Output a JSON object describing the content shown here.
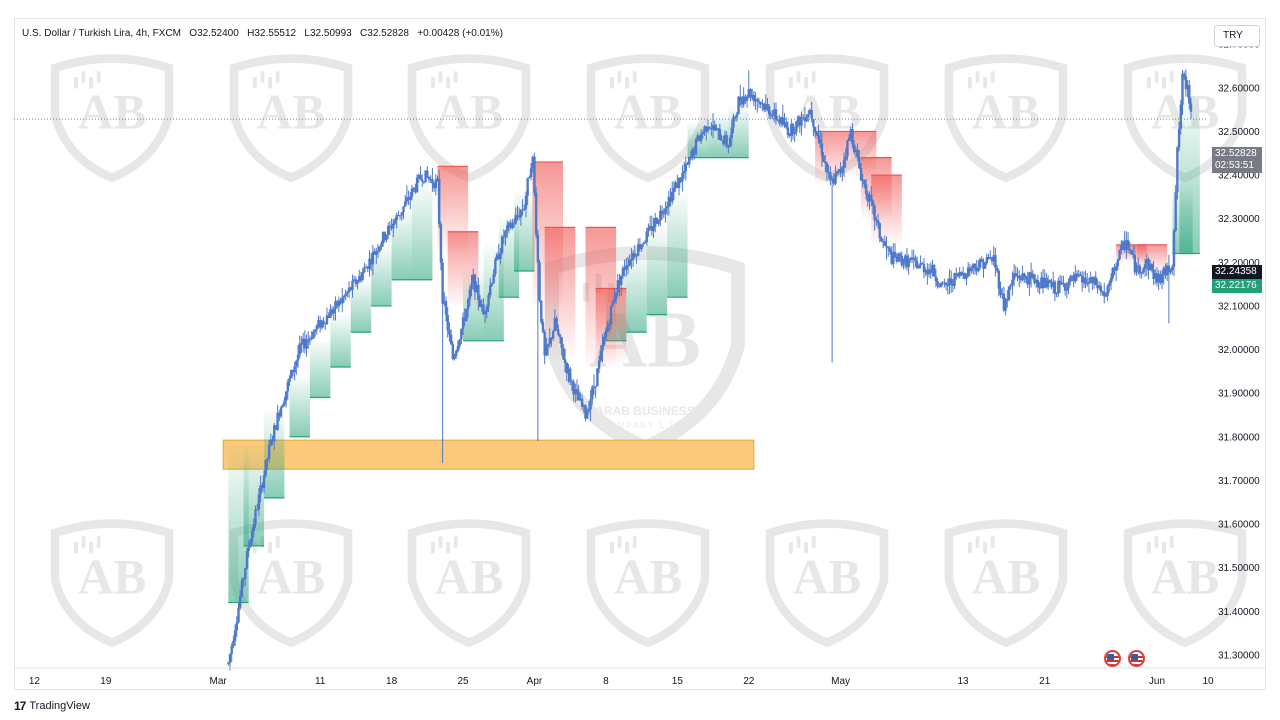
{
  "legend": {
    "symbol": "U.S. Dollar / Turkish Lira, 4h, FXCM",
    "open_label": "O",
    "open": "32.52400",
    "high_label": "H",
    "high": "32.55512",
    "low_label": "L",
    "low": "32.50993",
    "close_label": "C",
    "close": "32.52828",
    "change": "+0.00428 (+0.01%)"
  },
  "currency_button": "TRY",
  "footer": {
    "logo_mark": "17",
    "brand": "TradingView"
  },
  "price_tags": {
    "last": "32.52828",
    "countdown": "02:53:51",
    "level_black": "32.24358",
    "level_green": "32.22176"
  },
  "colors": {
    "candle": "#4e78c8",
    "zone_fill": "#fcc97a",
    "zone_border": "#e2a53c",
    "bull_trail": "#25a27a",
    "bear_trail": "#ef5350",
    "price_tag_last": "#787b86",
    "price_tag_black": "#131722",
    "price_tag_green": "#22a07a"
  },
  "watermark": {
    "text": "ARAB BUSINESS",
    "subtext": "COMPANY L.L.C"
  },
  "chart_data": {
    "type": "candlestick",
    "title": "U.S. Dollar / Turkish Lira, 4h, FXCM",
    "y_axis": {
      "ylim": [
        31.27,
        32.76
      ],
      "ticks": [
        "32.70000",
        "32.60000",
        "32.50000",
        "32.40000",
        "32.30000",
        "32.20000",
        "32.10000",
        "32.00000",
        "31.90000",
        "31.80000",
        "31.70000",
        "31.60000",
        "31.50000",
        "31.40000",
        "31.30000"
      ],
      "tick_values": [
        32.7,
        32.6,
        32.5,
        32.4,
        32.3,
        32.2,
        32.1,
        32.0,
        31.9,
        31.8,
        31.7,
        31.6,
        31.5,
        31.4,
        31.3
      ]
    },
    "x_axis": {
      "xlim_day": [
        0,
        117
      ],
      "ticks": [
        {
          "label": "12",
          "day": 2
        },
        {
          "label": "19",
          "day": 9
        },
        {
          "label": "Mar",
          "day": 20
        },
        {
          "label": "11",
          "day": 30
        },
        {
          "label": "18",
          "day": 37
        },
        {
          "label": "25",
          "day": 44
        },
        {
          "label": "Apr",
          "day": 51
        },
        {
          "label": "8",
          "day": 58
        },
        {
          "label": "15",
          "day": 65
        },
        {
          "label": "22",
          "day": 72
        },
        {
          "label": "May",
          "day": 81
        },
        {
          "label": "13",
          "day": 93
        },
        {
          "label": "21",
          "day": 101
        },
        {
          "label": "Jun",
          "day": 112
        },
        {
          "label": "10",
          "day": 119
        }
      ]
    },
    "price_path": [
      [
        21.0,
        31.28
      ],
      [
        22.0,
        31.41
      ],
      [
        23.0,
        31.55
      ],
      [
        24.0,
        31.66
      ],
      [
        25.0,
        31.77
      ],
      [
        26.0,
        31.86
      ],
      [
        27.0,
        31.93
      ],
      [
        28.0,
        32.0
      ],
      [
        30.0,
        32.06
      ],
      [
        32.0,
        32.11
      ],
      [
        34.0,
        32.17
      ],
      [
        36.0,
        32.25
      ],
      [
        38.0,
        32.32
      ],
      [
        40.0,
        32.4
      ],
      [
        41.5,
        32.38
      ],
      [
        42.0,
        32.12
      ],
      [
        43.0,
        31.98
      ],
      [
        44.0,
        32.06
      ],
      [
        45.0,
        32.16
      ],
      [
        46.0,
        32.08
      ],
      [
        47.0,
        32.18
      ],
      [
        48.0,
        32.26
      ],
      [
        50.0,
        32.33
      ],
      [
        50.8,
        32.45
      ],
      [
        51.5,
        32.12
      ],
      [
        52.0,
        31.98
      ],
      [
        53.0,
        32.06
      ],
      [
        54.0,
        31.97
      ],
      [
        55.0,
        31.9
      ],
      [
        56.0,
        31.85
      ],
      [
        57.0,
        31.93
      ],
      [
        58.0,
        32.04
      ],
      [
        59.0,
        32.14
      ],
      [
        60.0,
        32.2
      ],
      [
        62.0,
        32.26
      ],
      [
        64.0,
        32.34
      ],
      [
        66.0,
        32.42
      ],
      [
        67.0,
        32.48
      ],
      [
        68.0,
        32.52
      ],
      [
        70.0,
        32.47
      ],
      [
        71.0,
        32.57
      ],
      [
        72.0,
        32.59
      ],
      [
        74.0,
        32.55
      ],
      [
        76.0,
        32.5
      ],
      [
        78.0,
        32.55
      ],
      [
        79.0,
        32.47
      ],
      [
        80.0,
        32.38
      ],
      [
        81.0,
        32.41
      ],
      [
        82.0,
        32.5
      ],
      [
        83.0,
        32.4
      ],
      [
        84.0,
        32.33
      ],
      [
        85.0,
        32.25
      ],
      [
        86.0,
        32.21
      ],
      [
        88.0,
        32.2
      ],
      [
        90.0,
        32.18
      ],
      [
        91.0,
        32.14
      ],
      [
        92.0,
        32.16
      ],
      [
        94.0,
        32.19
      ],
      [
        96.0,
        32.21
      ],
      [
        97.0,
        32.1
      ],
      [
        98.0,
        32.17
      ],
      [
        100.0,
        32.16
      ],
      [
        102.0,
        32.14
      ],
      [
        104.0,
        32.16
      ],
      [
        106.0,
        32.15
      ],
      [
        107.0,
        32.12
      ],
      [
        108.0,
        32.2
      ],
      [
        109.0,
        32.25
      ],
      [
        110.0,
        32.18
      ],
      [
        111.0,
        32.2
      ],
      [
        112.0,
        32.16
      ],
      [
        113.0,
        32.18
      ],
      [
        113.5,
        32.2
      ],
      [
        114.0,
        32.45
      ],
      [
        114.5,
        32.62
      ],
      [
        115.0,
        32.6
      ],
      [
        115.5,
        32.53
      ]
    ],
    "support_zone": {
      "day_start": 20.5,
      "day_end": 72.5,
      "price_low": 31.76,
      "price_high": 31.79
    },
    "current_price": 32.52828
  }
}
